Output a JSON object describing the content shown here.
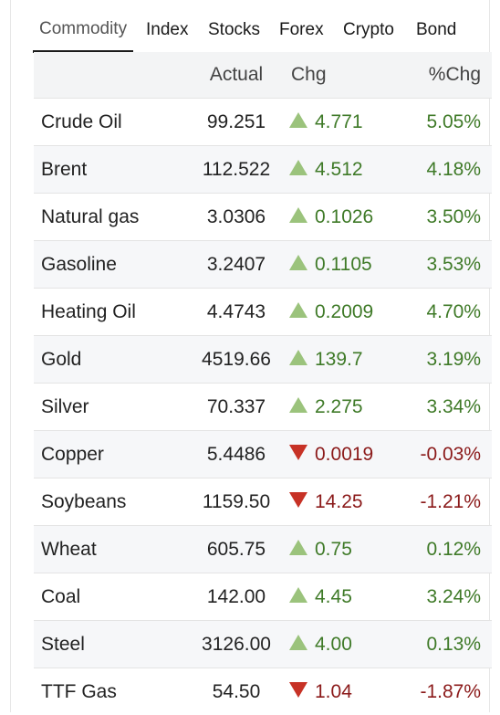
{
  "tabs": [
    {
      "label": "Commodity",
      "active": true
    },
    {
      "label": "Index",
      "active": false
    },
    {
      "label": "Stocks",
      "active": false
    },
    {
      "label": "Forex",
      "active": false
    },
    {
      "label": "Crypto",
      "active": false
    },
    {
      "label": "Bond",
      "active": false
    }
  ],
  "table": {
    "headers": {
      "name": "",
      "actual": "Actual",
      "chg": "Chg",
      "pct": "%Chg"
    },
    "colors": {
      "up": "#3f7a28",
      "down": "#8b1a1a",
      "up_arrow": "#9bc37c",
      "down_arrow": "#c73226",
      "row_alt": "#f6f7f9"
    },
    "rows": [
      {
        "name": "Crude Oil",
        "actual": "99.251",
        "direction": "up",
        "arrow_icon": "triangle-up-icon",
        "chg": "4.771",
        "pct": "5.05%"
      },
      {
        "name": "Brent",
        "actual": "112.522",
        "direction": "up",
        "arrow_icon": "triangle-up-icon",
        "chg": "4.512",
        "pct": "4.18%"
      },
      {
        "name": "Natural gas",
        "actual": "3.0306",
        "direction": "up",
        "arrow_icon": "triangle-up-icon",
        "chg": "0.1026",
        "pct": "3.50%"
      },
      {
        "name": "Gasoline",
        "actual": "3.2407",
        "direction": "up",
        "arrow_icon": "triangle-up-icon",
        "chg": "0.1105",
        "pct": "3.53%"
      },
      {
        "name": "Heating Oil",
        "actual": "4.4743",
        "direction": "up",
        "arrow_icon": "triangle-up-icon",
        "chg": "0.2009",
        "pct": "4.70%"
      },
      {
        "name": "Gold",
        "actual": "4519.66",
        "direction": "up",
        "arrow_icon": "triangle-up-icon",
        "chg": "139.7",
        "pct": "3.19%"
      },
      {
        "name": "Silver",
        "actual": "70.337",
        "direction": "up",
        "arrow_icon": "triangle-up-icon",
        "chg": "2.275",
        "pct": "3.34%"
      },
      {
        "name": "Copper",
        "actual": "5.4486",
        "direction": "down",
        "arrow_icon": "triangle-down-icon",
        "chg": "0.0019",
        "pct": "-0.03%"
      },
      {
        "name": "Soybeans",
        "actual": "1159.50",
        "direction": "down",
        "arrow_icon": "triangle-down-icon",
        "chg": "14.25",
        "pct": "-1.21%"
      },
      {
        "name": "Wheat",
        "actual": "605.75",
        "direction": "up",
        "arrow_icon": "triangle-up-icon",
        "chg": "0.75",
        "pct": "0.12%"
      },
      {
        "name": "Coal",
        "actual": "142.00",
        "direction": "up",
        "arrow_icon": "triangle-up-icon",
        "chg": "4.45",
        "pct": "3.24%"
      },
      {
        "name": "Steel",
        "actual": "3126.00",
        "direction": "up",
        "arrow_icon": "triangle-up-icon",
        "chg": "4.00",
        "pct": "0.13%"
      },
      {
        "name": "TTF Gas",
        "actual": "54.50",
        "direction": "down",
        "arrow_icon": "triangle-down-icon",
        "chg": "1.04",
        "pct": "-1.87%"
      }
    ]
  }
}
